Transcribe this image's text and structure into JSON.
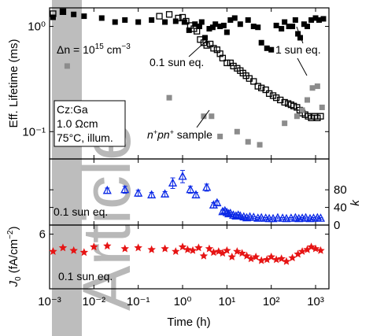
{
  "chart_data": [
    {
      "type": "scatter",
      "panel": "top",
      "ylabel": "Eff. Lifetime (ms)",
      "yscale": "log",
      "ylim": [
        0.055,
        1.5
      ],
      "yticks": [
        "10⁰",
        "10⁻¹"
      ],
      "ytick_values": [
        1,
        0.1
      ],
      "annotations": {
        "dn_prefix": "Δn = 10",
        "dn_exp": "15",
        "dn_unit": " cm",
        "dn_unit_exp": "−3",
        "sun01": "0.1 sun eq.",
        "sun1": "1 sun eq.",
        "sample_pre_n": "n",
        "sample_sup1": "+",
        "sample_mid": "pn",
        "sample_sup2": "+",
        "sample_post": " sample",
        "box_lines": [
          "Cz:Ga",
          "1.0 Ωcm",
          "75°C, illum."
        ]
      },
      "series": [
        {
          "name": "1 sun eq.",
          "marker": "filled-square",
          "color": "#000000",
          "x": [
            0.0012,
            0.002,
            0.0035,
            0.006,
            0.015,
            0.03,
            0.05,
            0.1,
            0.2,
            0.4,
            0.7,
            1.1,
            1.4,
            1.9,
            2.4,
            2.7,
            3.2,
            4.0,
            4.8,
            5.5,
            7.0,
            8.5,
            10,
            12,
            15,
            20,
            30,
            40,
            50,
            60,
            80,
            100,
            130,
            170,
            200,
            250,
            300,
            350,
            400,
            450,
            550,
            650,
            800,
            1000,
            1200,
            1500
          ],
          "y": [
            1.22,
            1.38,
            1.3,
            1.25,
            1.2,
            1.1,
            1.15,
            1.1,
            1.15,
            1.1,
            1.12,
            1.1,
            0.92,
            1.05,
            1.0,
            1.1,
            0.78,
            0.95,
            0.98,
            1.05,
            1.0,
            1.02,
            0.88,
            1.15,
            1.2,
            1.05,
            1.15,
            1.0,
            0.98,
            0.7,
            0.62,
            0.6,
            1.02,
            0.95,
            1.1,
            1.0,
            1.0,
            1.15,
            0.85,
            0.78,
            1.05,
            1.0,
            1.15,
            1.2,
            1.15,
            1.18
          ]
        },
        {
          "name": "0.1 sun eq.",
          "marker": "open-square",
          "color": "#000000",
          "x": [
            0.0012,
            0.002,
            0.3,
            0.5,
            0.8,
            1.0,
            1.2,
            1.5,
            1.8,
            2.1,
            2.5,
            3.0,
            3.5,
            4.2,
            5,
            6,
            7,
            8,
            10,
            12,
            14,
            17,
            20,
            23,
            27,
            32,
            40,
            50,
            60,
            75,
            90,
            110,
            130,
            160,
            200,
            240,
            280,
            320,
            380,
            440,
            500,
            580,
            680,
            800,
            950,
            1100,
            1300
          ],
          "y": [
            1.32,
            1.38,
            1.25,
            1.3,
            1.2,
            1.22,
            1.12,
            1.02,
            0.95,
            0.9,
            0.75,
            0.7,
            0.66,
            0.68,
            0.62,
            0.6,
            0.55,
            0.5,
            0.45,
            0.45,
            0.42,
            0.4,
            0.38,
            0.36,
            0.34,
            0.32,
            0.3,
            0.27,
            0.26,
            0.25,
            0.23,
            0.22,
            0.21,
            0.2,
            0.19,
            0.185,
            0.18,
            0.175,
            0.17,
            0.16,
            0.15,
            0.145,
            0.14,
            0.135,
            0.14,
            0.135,
            0.14
          ]
        },
        {
          "name": "n+pn+ sample",
          "marker": "filled-square",
          "color": "#8c8c8c",
          "x": [
            0.0025,
            0.5,
            3,
            4.5,
            7,
            17,
            30,
            55,
            200,
            380,
            500,
            650,
            850,
            1100,
            1400
          ],
          "y": [
            0.42,
            0.21,
            0.14,
            0.14,
            0.09,
            0.1,
            0.08,
            0.075,
            0.12,
            0.14,
            0.16,
            0.2,
            0.26,
            0.27,
            0.17
          ]
        }
      ]
    },
    {
      "type": "scatter",
      "panel": "middle",
      "ylabel": "k",
      "ylim": [
        0,
        150
      ],
      "yticks": [
        "0",
        "40",
        "80"
      ],
      "ytick_values": [
        0,
        40,
        80
      ],
      "annotation": "0.1 sun eq.",
      "series": [
        {
          "name": "k (0.1 sun eq.)",
          "marker": "open-triangle",
          "color": "#0a28e6",
          "x": [
            0.02,
            0.05,
            0.1,
            0.2,
            0.4,
            0.6,
            1.0,
            1.5,
            2.0,
            3.5,
            5,
            6,
            8,
            9,
            10,
            11,
            12,
            14,
            16,
            18,
            20,
            24,
            28,
            33,
            40,
            50,
            60,
            75,
            90,
            110,
            140,
            180,
            220,
            280,
            350,
            420,
            500,
            600,
            750,
            900,
            1100,
            1300
          ],
          "y": [
            78,
            80,
            72,
            68,
            70,
            95,
            110,
            80,
            68,
            85,
            45,
            50,
            30,
            32,
            28,
            25,
            26,
            22,
            20,
            22,
            20,
            18,
            16,
            18,
            17,
            15,
            16,
            15,
            14,
            14,
            16,
            15,
            14,
            15,
            16,
            14,
            15,
            16,
            14,
            15,
            16,
            15
          ],
          "err": [
            6,
            8,
            7,
            6,
            6,
            12,
            14,
            8,
            6,
            8,
            6,
            5,
            4,
            4,
            3,
            3,
            3,
            3,
            3,
            2,
            2,
            2,
            2,
            2,
            2,
            2,
            2,
            2,
            2,
            2,
            2,
            2,
            2,
            2,
            2,
            2,
            2,
            2,
            2,
            2,
            2,
            2
          ]
        }
      ]
    },
    {
      "type": "scatter",
      "panel": "bottom",
      "ylabel": "J0 (fA/cm−2)",
      "ylabel_main": "J",
      "ylabel_sub": "0",
      "ylabel_rest": " (fA/cm",
      "ylabel_sup": "−2",
      "ylabel_close": ")",
      "ylim": [
        0,
        7
      ],
      "yticks": [
        "6"
      ],
      "ytick_values": [
        6
      ],
      "annotation": "0.1 sun eq.",
      "xlabel": "Time (h)",
      "xscale": "log",
      "xlim": [
        0.001,
        2000
      ],
      "xticks": [
        "10⁻³",
        "10⁻²",
        "10⁻¹",
        "10⁰",
        "10¹",
        "10²",
        "10³"
      ],
      "xtick_values": [
        0.001,
        0.01,
        0.1,
        1,
        10,
        100,
        1000
      ],
      "series": [
        {
          "name": "J0 (0.1 sun eq.)",
          "marker": "star",
          "color": "#e61414",
          "x": [
            0.0012,
            0.002,
            0.0035,
            0.006,
            0.01,
            0.02,
            0.05,
            0.1,
            0.2,
            0.4,
            0.7,
            1.0,
            1.3,
            1.7,
            2.3,
            3.0,
            4.0,
            5.0,
            6.5,
            8,
            10,
            13,
            17,
            22,
            28,
            35,
            45,
            60,
            80,
            100,
            130,
            170,
            220,
            300,
            400,
            500,
            650,
            800,
            1000,
            1300
          ],
          "y": [
            4.1,
            4.5,
            4.2,
            4.0,
            4.6,
            4.7,
            4.4,
            4.5,
            4.3,
            4.4,
            4.1,
            4.6,
            4.3,
            4.2,
            4.5,
            3.6,
            4.4,
            4.0,
            4.1,
            3.9,
            4.2,
            3.5,
            4.1,
            3.9,
            3.6,
            3.3,
            3.5,
            3.1,
            3.2,
            3.5,
            3.2,
            3.3,
            3.0,
            3.4,
            3.8,
            4.1,
            4.3,
            4.6,
            4.4,
            4.2
          ]
        }
      ]
    }
  ],
  "watermark": {
    "text": "Article",
    "bar_color": "#bdbdbd"
  }
}
